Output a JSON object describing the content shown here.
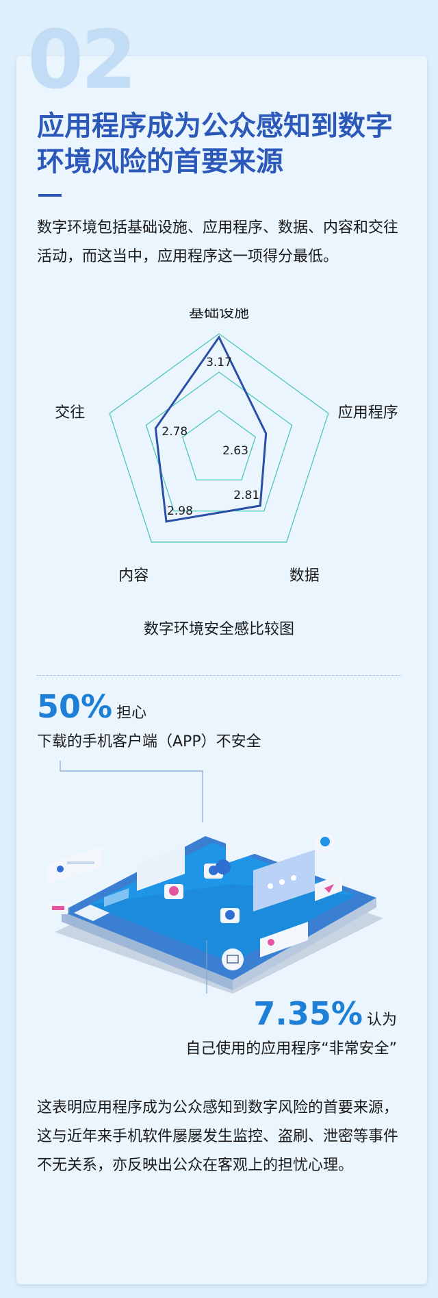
{
  "header": {
    "section_number": "02",
    "title": "应用程序成为公众感知到数字环境风险的首要来源",
    "intro": "数字环境包括基础设施、应用程序、数据、内容和交往活动，而这当中，应用程序这一项得分最低。"
  },
  "chart_data": {
    "type": "radar",
    "title": "数字环境安全感比较图",
    "axes": [
      "基础设施",
      "应用程序",
      "数据",
      "内容",
      "交往"
    ],
    "values": [
      3.17,
      2.63,
      2.81,
      2.98,
      2.78
    ],
    "grid_levels": 3,
    "colors": {
      "grid": "#4fc7b5",
      "series": "#2b4fa6"
    }
  },
  "stats": [
    {
      "value": "50%",
      "verb": "担心",
      "text": "下载的手机客户端（APP）不安全"
    },
    {
      "value": "7.35%",
      "verb": "认为",
      "text": "自己使用的应用程序“非常安全”"
    }
  ],
  "illustration": {
    "name": "isometric-smartphone-with-chat-bubbles-and-icons"
  },
  "conclusion": "这表明应用程序成为公众感知到数字风险的首要来源，这与近年来手机软件屡屡发生监控、盗刷、泄密等事件不无关系，亦反映出公众在客观上的担忧心理。",
  "colors": {
    "accent": "#2b58b9",
    "highlight": "#1d7fd6",
    "background": "#eaf5fd"
  }
}
